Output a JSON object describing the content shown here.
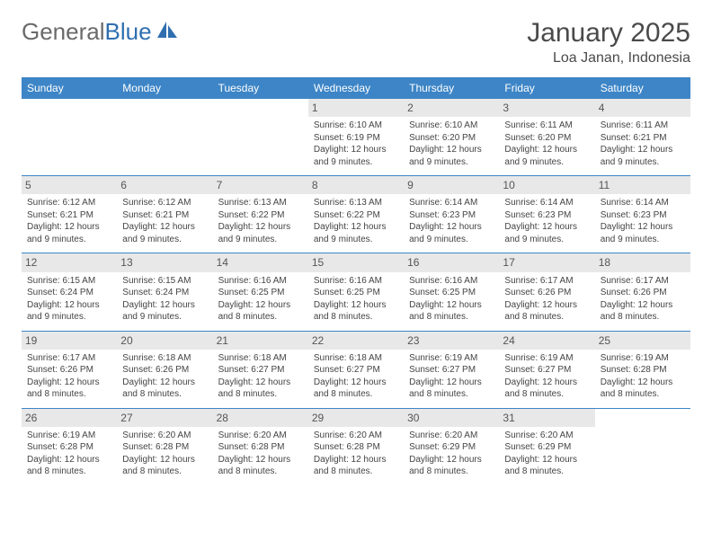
{
  "logo": {
    "text1": "General",
    "text2": "Blue"
  },
  "title": "January 2025",
  "location": "Loa Janan, Indonesia",
  "colors": {
    "header_bg": "#3d85c6",
    "header_text": "#ffffff",
    "daynum_bg": "#e8e8e8",
    "border": "#3d85c6",
    "logo_gray": "#6a6a6a",
    "logo_blue": "#2f6fb0"
  },
  "weekdays": [
    "Sunday",
    "Monday",
    "Tuesday",
    "Wednesday",
    "Thursday",
    "Friday",
    "Saturday"
  ],
  "weeks": [
    [
      {
        "n": "",
        "empty": true
      },
      {
        "n": "",
        "empty": true
      },
      {
        "n": "",
        "empty": true
      },
      {
        "n": "1",
        "sr": "Sunrise: 6:10 AM",
        "ss": "Sunset: 6:19 PM",
        "dl": "Daylight: 12 hours and 9 minutes."
      },
      {
        "n": "2",
        "sr": "Sunrise: 6:10 AM",
        "ss": "Sunset: 6:20 PM",
        "dl": "Daylight: 12 hours and 9 minutes."
      },
      {
        "n": "3",
        "sr": "Sunrise: 6:11 AM",
        "ss": "Sunset: 6:20 PM",
        "dl": "Daylight: 12 hours and 9 minutes."
      },
      {
        "n": "4",
        "sr": "Sunrise: 6:11 AM",
        "ss": "Sunset: 6:21 PM",
        "dl": "Daylight: 12 hours and 9 minutes."
      }
    ],
    [
      {
        "n": "5",
        "sr": "Sunrise: 6:12 AM",
        "ss": "Sunset: 6:21 PM",
        "dl": "Daylight: 12 hours and 9 minutes."
      },
      {
        "n": "6",
        "sr": "Sunrise: 6:12 AM",
        "ss": "Sunset: 6:21 PM",
        "dl": "Daylight: 12 hours and 9 minutes."
      },
      {
        "n": "7",
        "sr": "Sunrise: 6:13 AM",
        "ss": "Sunset: 6:22 PM",
        "dl": "Daylight: 12 hours and 9 minutes."
      },
      {
        "n": "8",
        "sr": "Sunrise: 6:13 AM",
        "ss": "Sunset: 6:22 PM",
        "dl": "Daylight: 12 hours and 9 minutes."
      },
      {
        "n": "9",
        "sr": "Sunrise: 6:14 AM",
        "ss": "Sunset: 6:23 PM",
        "dl": "Daylight: 12 hours and 9 minutes."
      },
      {
        "n": "10",
        "sr": "Sunrise: 6:14 AM",
        "ss": "Sunset: 6:23 PM",
        "dl": "Daylight: 12 hours and 9 minutes."
      },
      {
        "n": "11",
        "sr": "Sunrise: 6:14 AM",
        "ss": "Sunset: 6:23 PM",
        "dl": "Daylight: 12 hours and 9 minutes."
      }
    ],
    [
      {
        "n": "12",
        "sr": "Sunrise: 6:15 AM",
        "ss": "Sunset: 6:24 PM",
        "dl": "Daylight: 12 hours and 9 minutes."
      },
      {
        "n": "13",
        "sr": "Sunrise: 6:15 AM",
        "ss": "Sunset: 6:24 PM",
        "dl": "Daylight: 12 hours and 9 minutes."
      },
      {
        "n": "14",
        "sr": "Sunrise: 6:16 AM",
        "ss": "Sunset: 6:25 PM",
        "dl": "Daylight: 12 hours and 8 minutes."
      },
      {
        "n": "15",
        "sr": "Sunrise: 6:16 AM",
        "ss": "Sunset: 6:25 PM",
        "dl": "Daylight: 12 hours and 8 minutes."
      },
      {
        "n": "16",
        "sr": "Sunrise: 6:16 AM",
        "ss": "Sunset: 6:25 PM",
        "dl": "Daylight: 12 hours and 8 minutes."
      },
      {
        "n": "17",
        "sr": "Sunrise: 6:17 AM",
        "ss": "Sunset: 6:26 PM",
        "dl": "Daylight: 12 hours and 8 minutes."
      },
      {
        "n": "18",
        "sr": "Sunrise: 6:17 AM",
        "ss": "Sunset: 6:26 PM",
        "dl": "Daylight: 12 hours and 8 minutes."
      }
    ],
    [
      {
        "n": "19",
        "sr": "Sunrise: 6:17 AM",
        "ss": "Sunset: 6:26 PM",
        "dl": "Daylight: 12 hours and 8 minutes."
      },
      {
        "n": "20",
        "sr": "Sunrise: 6:18 AM",
        "ss": "Sunset: 6:26 PM",
        "dl": "Daylight: 12 hours and 8 minutes."
      },
      {
        "n": "21",
        "sr": "Sunrise: 6:18 AM",
        "ss": "Sunset: 6:27 PM",
        "dl": "Daylight: 12 hours and 8 minutes."
      },
      {
        "n": "22",
        "sr": "Sunrise: 6:18 AM",
        "ss": "Sunset: 6:27 PM",
        "dl": "Daylight: 12 hours and 8 minutes."
      },
      {
        "n": "23",
        "sr": "Sunrise: 6:19 AM",
        "ss": "Sunset: 6:27 PM",
        "dl": "Daylight: 12 hours and 8 minutes."
      },
      {
        "n": "24",
        "sr": "Sunrise: 6:19 AM",
        "ss": "Sunset: 6:27 PM",
        "dl": "Daylight: 12 hours and 8 minutes."
      },
      {
        "n": "25",
        "sr": "Sunrise: 6:19 AM",
        "ss": "Sunset: 6:28 PM",
        "dl": "Daylight: 12 hours and 8 minutes."
      }
    ],
    [
      {
        "n": "26",
        "sr": "Sunrise: 6:19 AM",
        "ss": "Sunset: 6:28 PM",
        "dl": "Daylight: 12 hours and 8 minutes."
      },
      {
        "n": "27",
        "sr": "Sunrise: 6:20 AM",
        "ss": "Sunset: 6:28 PM",
        "dl": "Daylight: 12 hours and 8 minutes."
      },
      {
        "n": "28",
        "sr": "Sunrise: 6:20 AM",
        "ss": "Sunset: 6:28 PM",
        "dl": "Daylight: 12 hours and 8 minutes."
      },
      {
        "n": "29",
        "sr": "Sunrise: 6:20 AM",
        "ss": "Sunset: 6:28 PM",
        "dl": "Daylight: 12 hours and 8 minutes."
      },
      {
        "n": "30",
        "sr": "Sunrise: 6:20 AM",
        "ss": "Sunset: 6:29 PM",
        "dl": "Daylight: 12 hours and 8 minutes."
      },
      {
        "n": "31",
        "sr": "Sunrise: 6:20 AM",
        "ss": "Sunset: 6:29 PM",
        "dl": "Daylight: 12 hours and 8 minutes."
      },
      {
        "n": "",
        "empty": true
      }
    ]
  ]
}
